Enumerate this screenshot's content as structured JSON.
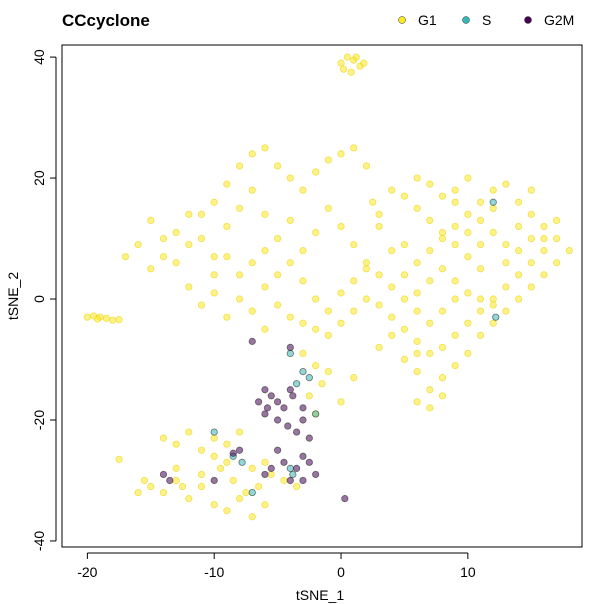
{
  "chart_data": {
    "type": "scatter",
    "title": "CCcyclone",
    "xlabel": "tSNE_1",
    "ylabel": "tSNE_2",
    "xlim": [
      -22,
      19
    ],
    "ylim": [
      -41,
      42
    ],
    "xticks": [
      -20,
      -10,
      0,
      10
    ],
    "yticks": [
      -40,
      -20,
      0,
      20,
      40
    ],
    "x_tick_labels": [
      "-20",
      "-10",
      "0",
      "10"
    ],
    "y_tick_labels": [
      "-40",
      "-20",
      "0",
      "20",
      "40"
    ],
    "grid": false,
    "legend_position": "top-right",
    "series": [
      {
        "name": "G1",
        "color": "#FDE725",
        "points": [
          [
            0,
            39
          ],
          [
            0.5,
            40
          ],
          [
            1,
            39.5
          ],
          [
            1.5,
            38.5
          ],
          [
            0.2,
            38
          ],
          [
            0.8,
            37.5
          ],
          [
            1.2,
            40
          ],
          [
            1.8,
            39
          ],
          [
            -20,
            -3
          ],
          [
            -19.5,
            -2.8
          ],
          [
            -19,
            -3
          ],
          [
            -18.5,
            -3.2
          ],
          [
            -18,
            -3.5
          ],
          [
            -17.5,
            -3.4
          ],
          [
            -19.2,
            -3.3
          ],
          [
            -17,
            7
          ],
          [
            -16,
            9
          ],
          [
            -15,
            13
          ],
          [
            -14,
            10
          ],
          [
            -13,
            6
          ],
          [
            -12,
            9
          ],
          [
            -11,
            14
          ],
          [
            -10,
            16
          ],
          [
            -9,
            19
          ],
          [
            -8,
            22
          ],
          [
            -7,
            24
          ],
          [
            -6,
            25
          ],
          [
            -5,
            22
          ],
          [
            -4,
            20
          ],
          [
            -3,
            18
          ],
          [
            -2,
            21
          ],
          [
            -1,
            23
          ],
          [
            0,
            24
          ],
          [
            1,
            25
          ],
          [
            2,
            22
          ],
          [
            -15,
            5
          ],
          [
            -14,
            7
          ],
          [
            -13,
            11
          ],
          [
            -12,
            14
          ],
          [
            -11,
            10
          ],
          [
            -10,
            7
          ],
          [
            -9,
            12
          ],
          [
            -8,
            15
          ],
          [
            -7,
            18
          ],
          [
            -6,
            14
          ],
          [
            -5,
            10
          ],
          [
            -4,
            13
          ],
          [
            -3,
            8
          ],
          [
            -2,
            11
          ],
          [
            -1,
            15
          ],
          [
            0,
            12
          ],
          [
            1,
            9
          ],
          [
            2,
            6
          ],
          [
            3,
            12
          ],
          [
            2.5,
            16
          ],
          [
            -12,
            2
          ],
          [
            -11,
            -1
          ],
          [
            -10,
            1
          ],
          [
            -9,
            -3
          ],
          [
            -8,
            0
          ],
          [
            -7,
            -2
          ],
          [
            -6,
            2
          ],
          [
            -5,
            4
          ],
          [
            -4,
            6
          ],
          [
            -3,
            3
          ],
          [
            -2,
            0
          ],
          [
            -1,
            -2
          ],
          [
            0,
            1
          ],
          [
            1,
            3
          ],
          [
            2,
            5
          ],
          [
            3,
            -1
          ],
          [
            -8,
            4
          ],
          [
            -9,
            7
          ],
          [
            -10,
            4
          ],
          [
            -7,
            6
          ],
          [
            -6,
            8
          ],
          [
            -5,
            -1
          ],
          [
            -4,
            -3
          ],
          [
            -3,
            -4
          ],
          [
            -2,
            -5
          ],
          [
            -1,
            -6
          ],
          [
            0,
            -4
          ],
          [
            1,
            -2
          ],
          [
            2,
            0
          ],
          [
            -6,
            -5
          ],
          [
            4,
            -3
          ],
          [
            5,
            -5
          ],
          [
            6,
            -7
          ],
          [
            7,
            -9
          ],
          [
            8,
            -8
          ],
          [
            9,
            -6
          ],
          [
            10,
            -4
          ],
          [
            11,
            -2
          ],
          [
            12,
            0
          ],
          [
            13,
            2
          ],
          [
            14,
            4
          ],
          [
            15,
            6
          ],
          [
            16,
            8
          ],
          [
            17,
            10
          ],
          [
            18,
            8
          ],
          [
            17,
            6
          ],
          [
            16,
            4
          ],
          [
            15,
            2
          ],
          [
            14,
            0
          ],
          [
            13,
            -2
          ],
          [
            12,
            -4
          ],
          [
            11,
            -6
          ],
          [
            10,
            -9
          ],
          [
            9,
            -11
          ],
          [
            8,
            -13
          ],
          [
            7,
            -15
          ],
          [
            6,
            -17
          ],
          [
            7,
            -18
          ],
          [
            8,
            -16
          ],
          [
            6,
            -12
          ],
          [
            4,
            2
          ],
          [
            5,
            4
          ],
          [
            6,
            6
          ],
          [
            7,
            8
          ],
          [
            8,
            10
          ],
          [
            9,
            12
          ],
          [
            10,
            14
          ],
          [
            11,
            16
          ],
          [
            12,
            18
          ],
          [
            13,
            19
          ],
          [
            10,
            20
          ],
          [
            9,
            18
          ],
          [
            8,
            17
          ],
          [
            7,
            19
          ],
          [
            6,
            20
          ],
          [
            5,
            17
          ],
          [
            4,
            18
          ],
          [
            11,
            13
          ],
          [
            12,
            11
          ],
          [
            13,
            9
          ],
          [
            14,
            12
          ],
          [
            15,
            14
          ],
          [
            16,
            12
          ],
          [
            17,
            13
          ],
          [
            6,
            15
          ],
          [
            7,
            13
          ],
          [
            8,
            11
          ],
          [
            9,
            9
          ],
          [
            10,
            7
          ],
          [
            11,
            5
          ],
          [
            5,
            9
          ],
          [
            6,
            1
          ],
          [
            7,
            3
          ],
          [
            8,
            5
          ],
          [
            9,
            3
          ],
          [
            10,
            1
          ],
          [
            11,
            0
          ],
          [
            12,
            -1
          ],
          [
            9,
            0
          ],
          [
            8,
            -2
          ],
          [
            7,
            -4
          ],
          [
            6,
            -2
          ],
          [
            5,
            0
          ],
          [
            4,
            -6
          ],
          [
            3,
            -8
          ],
          [
            5,
            -10
          ],
          [
            6,
            -9
          ],
          [
            3,
            4
          ],
          [
            4,
            8
          ],
          [
            3,
            14
          ],
          [
            14,
            16
          ],
          [
            15,
            18
          ],
          [
            12,
            15
          ],
          [
            11,
            9
          ],
          [
            10,
            11
          ],
          [
            13,
            6
          ],
          [
            14,
            8
          ],
          [
            15,
            10
          ],
          [
            16,
            10
          ],
          [
            9,
            16
          ],
          [
            -14,
            -23
          ],
          [
            -13,
            -24
          ],
          [
            -12,
            -22
          ],
          [
            -11,
            -25
          ],
          [
            -10,
            -23
          ],
          [
            -9,
            -24
          ],
          [
            -8,
            -22
          ],
          [
            -15,
            -31
          ],
          [
            -14,
            -32
          ],
          [
            -13,
            -30
          ],
          [
            -12,
            -33
          ],
          [
            -11,
            -31
          ],
          [
            -10,
            -34
          ],
          [
            -9,
            -35
          ],
          [
            -8,
            -33
          ],
          [
            -7,
            -36
          ],
          [
            -6,
            -34
          ],
          [
            -16,
            -32
          ],
          [
            -15.5,
            -30
          ],
          [
            -12.5,
            -31
          ],
          [
            -11,
            -29
          ],
          [
            -9.5,
            -28
          ],
          [
            -8.5,
            -30
          ],
          [
            -7.5,
            -32
          ],
          [
            -6.5,
            -31
          ],
          [
            -5.5,
            -29
          ],
          [
            -4.5,
            -30
          ],
          [
            -3.5,
            -31
          ],
          [
            -10,
            -26
          ],
          [
            -9,
            -27
          ],
          [
            -3,
            -9
          ],
          [
            -2,
            -11
          ],
          [
            -1,
            -12
          ],
          [
            -1.5,
            -14
          ],
          [
            -2.5,
            -16
          ],
          [
            1,
            -13
          ],
          [
            0,
            -17
          ],
          [
            -2,
            -19
          ],
          [
            -17.5,
            -26.5
          ],
          [
            -13,
            -28
          ],
          [
            -7,
            -28
          ],
          [
            -6,
            -27
          ]
        ]
      },
      {
        "name": "S",
        "color": "#35B7B7",
        "points": [
          [
            12,
            16
          ],
          [
            12.2,
            -3
          ],
          [
            -3,
            -12
          ],
          [
            -2.5,
            -13
          ],
          [
            -4,
            -9
          ],
          [
            -3.5,
            -14
          ],
          [
            -2,
            -19
          ],
          [
            -10,
            -22
          ],
          [
            -8.5,
            -26
          ],
          [
            -7.8,
            -27
          ],
          [
            -7,
            -32
          ],
          [
            -4,
            -28
          ],
          [
            -3.8,
            -29
          ]
        ]
      },
      {
        "name": "G2M",
        "color": "#440154",
        "points": [
          [
            -7,
            -7
          ],
          [
            -6,
            -15
          ],
          [
            -5.5,
            -16
          ],
          [
            -5,
            -17
          ],
          [
            -4.5,
            -18
          ],
          [
            -6,
            -19
          ],
          [
            -5,
            -20
          ],
          [
            -4,
            -15
          ],
          [
            -4.2,
            -21
          ],
          [
            -3.5,
            -22
          ],
          [
            -3,
            -20
          ],
          [
            -2.5,
            -23
          ],
          [
            -3.8,
            -16
          ],
          [
            -6.5,
            -17
          ],
          [
            -5.8,
            -18
          ],
          [
            -3,
            -26
          ],
          [
            -2.5,
            -27
          ],
          [
            -3.5,
            -28
          ],
          [
            -4.5,
            -27
          ],
          [
            -5,
            -25
          ],
          [
            -2,
            -29
          ],
          [
            -3,
            -30
          ],
          [
            -4,
            -30
          ],
          [
            -8,
            -25
          ],
          [
            -8.5,
            -25.5
          ],
          [
            -5.5,
            -28
          ],
          [
            -6,
            -29
          ],
          [
            -14,
            -29
          ],
          [
            -13.5,
            -30
          ],
          [
            -10,
            -30
          ],
          [
            0.3,
            -33
          ],
          [
            -4,
            -8
          ],
          [
            -3,
            -18
          ]
        ]
      }
    ]
  }
}
